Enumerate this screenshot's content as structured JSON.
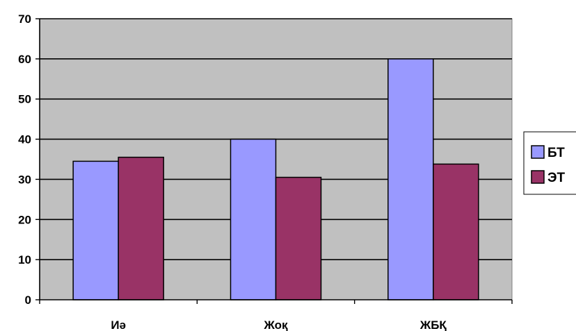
{
  "chart_data": {
    "type": "bar",
    "title": "",
    "xlabel": "",
    "ylabel": "",
    "categories": [
      "Иә",
      "Жоқ",
      "ЖБҚ"
    ],
    "series": [
      {
        "name": "БТ",
        "values": [
          34.5,
          40,
          60
        ],
        "color": "#9999ff"
      },
      {
        "name": "ЭТ",
        "values": [
          35.5,
          30.5,
          33.8
        ],
        "color": "#993366"
      }
    ],
    "ylim": [
      0,
      70
    ],
    "yticks": [
      0,
      10,
      20,
      30,
      40,
      50,
      60,
      70
    ],
    "grid": true,
    "legend_position": "right",
    "plot_background": "#c0c0c0"
  }
}
